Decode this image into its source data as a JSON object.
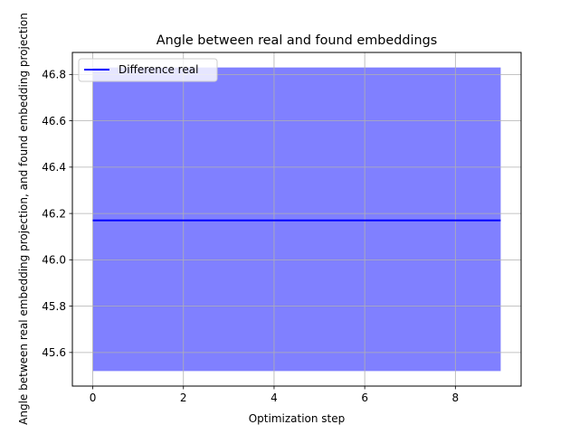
{
  "chart_data": {
    "type": "line",
    "title": "Angle between real and found embeddings",
    "xlabel": "Optimization step",
    "ylabel": "Angle between real embedding projection, and found embedding projection",
    "xlim": [
      -0.45,
      9.45
    ],
    "ylim": [
      45.455,
      46.895
    ],
    "xticks": [
      0,
      2,
      4,
      6,
      8
    ],
    "xtick_labels": [
      "0",
      "2",
      "4",
      "6",
      "8"
    ],
    "yticks": [
      45.6,
      45.8,
      46.0,
      46.2,
      46.4,
      46.6,
      46.8
    ],
    "ytick_labels": [
      "45.6",
      "45.8",
      "46.0",
      "46.2",
      "46.4",
      "46.6",
      "46.8"
    ],
    "grid": true,
    "legend_position": "top-left",
    "x": [
      0,
      1,
      2,
      3,
      4,
      5,
      6,
      7,
      8,
      9
    ],
    "series": [
      {
        "name": "Difference real",
        "values": [
          46.17,
          46.17,
          46.17,
          46.17,
          46.17,
          46.17,
          46.17,
          46.17,
          46.17,
          46.17
        ],
        "color": "#0000ff",
        "band_lower": [
          45.52,
          45.52,
          45.52,
          45.52,
          45.52,
          45.52,
          45.52,
          45.52,
          45.52,
          45.52
        ],
        "band_upper": [
          46.83,
          46.83,
          46.83,
          46.83,
          46.83,
          46.83,
          46.83,
          46.83,
          46.83,
          46.83
        ],
        "band_color": "#8080ff"
      }
    ]
  }
}
